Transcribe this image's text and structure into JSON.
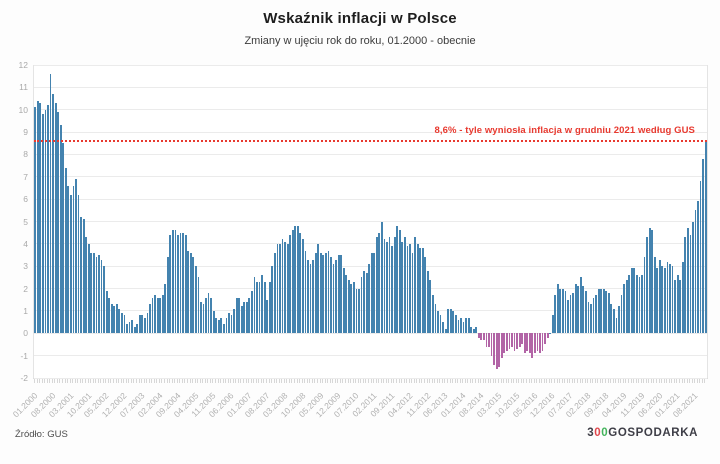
{
  "title": "Wskaźnik inflacji w Polsce",
  "subtitle": "Zmiany w ujęciu rok do roku, 01.2000 - obecnie",
  "annotation": {
    "text": "8,6% - tyle wyniosła inflacja w grudniu 2021 według GUS",
    "value": 8.6,
    "color": "#e8392f"
  },
  "source": "Źródło: GUS",
  "logo": {
    "part1": "3",
    "zero1": "0",
    "zero2": "0",
    "part2": "GOSPODARKA",
    "color_dark": "#3e3e47",
    "color_red": "#e0484d",
    "color_green": "#43b45c"
  },
  "chart_data": {
    "type": "bar",
    "title": "Wskaźnik inflacji w Polsce",
    "subtitle": "Zmiany w ujęciu rok do roku, 01.2000 - obecnie",
    "unit": "%",
    "start_month": "01.2000",
    "end_month": "12.2021",
    "ylim": [
      -2,
      12
    ],
    "y_ticks": [
      12,
      11,
      10,
      9,
      8,
      7,
      6,
      5,
      4,
      3,
      2,
      1,
      0,
      -1,
      -2
    ],
    "x_tick_interval_months": 7,
    "x_tick_labels": [
      "01.2000",
      "08.2000",
      "03.2001",
      "10.2001",
      "05.2002",
      "12.2002",
      "07.2003",
      "02.2004",
      "09.2004",
      "04.2005",
      "11.2005",
      "06.2006",
      "01.2007",
      "08.2007",
      "03.2008",
      "10.2008",
      "05.2009",
      "12.2009",
      "07.2010",
      "02.2011",
      "09.2011",
      "04.2012",
      "11.2012",
      "06.2013",
      "01.2014",
      "08.2014",
      "03.2015",
      "10.2015",
      "05.2016",
      "12.2016",
      "07.2017",
      "02.2018",
      "09.2018",
      "04.2019",
      "11.2019",
      "06.2020",
      "01.2021",
      "08.2021"
    ],
    "grid": true,
    "legend": false,
    "colors": {
      "positive_bar": "#4483af",
      "negative_bar": "#b264a6",
      "reference_line": "#e8392f",
      "gridline": "#ebebeb",
      "axis_text": "#aaaaaa"
    },
    "reference_line": {
      "value": 8.6,
      "style": "dotted"
    },
    "values": [
      10.1,
      10.4,
      10.3,
      9.8,
      10.0,
      10.2,
      11.6,
      10.7,
      10.3,
      9.9,
      9.3,
      8.5,
      7.4,
      6.6,
      6.2,
      6.6,
      6.9,
      6.2,
      5.2,
      5.1,
      4.3,
      4.0,
      3.6,
      3.6,
      3.4,
      3.5,
      3.3,
      3.0,
      1.9,
      1.6,
      1.3,
      1.2,
      1.3,
      1.1,
      0.9,
      0.8,
      0.4,
      0.5,
      0.6,
      0.3,
      0.4,
      0.8,
      0.8,
      0.7,
      0.9,
      1.3,
      1.6,
      1.7,
      1.6,
      1.6,
      1.7,
      2.2,
      3.4,
      4.4,
      4.6,
      4.6,
      4.4,
      4.5,
      4.5,
      4.4,
      3.7,
      3.6,
      3.4,
      3.0,
      2.5,
      1.4,
      1.3,
      1.6,
      1.8,
      1.6,
      1.0,
      0.7,
      0.6,
      0.7,
      0.4,
      0.7,
      0.9,
      0.8,
      1.1,
      1.6,
      1.6,
      1.2,
      1.4,
      1.4,
      1.6,
      1.9,
      2.5,
      2.3,
      2.3,
      2.6,
      2.3,
      1.5,
      2.3,
      3.0,
      3.6,
      4.0,
      4.0,
      4.2,
      4.1,
      4.0,
      4.4,
      4.6,
      4.8,
      4.8,
      4.5,
      4.2,
      3.7,
      3.3,
      3.1,
      3.3,
      3.6,
      4.0,
      3.6,
      3.5,
      3.6,
      3.7,
      3.4,
      3.1,
      3.3,
      3.5,
      3.5,
      2.9,
      2.6,
      2.4,
      2.2,
      2.3,
      2.0,
      2.0,
      2.5,
      2.8,
      2.7,
      3.1,
      3.6,
      3.6,
      4.3,
      4.5,
      5.0,
      4.2,
      4.1,
      4.3,
      3.9,
      4.3,
      4.8,
      4.6,
      4.1,
      4.3,
      3.9,
      4.0,
      3.6,
      4.3,
      4.0,
      3.8,
      3.8,
      3.4,
      2.8,
      2.4,
      1.7,
      1.3,
      1.0,
      0.8,
      0.5,
      0.2,
      1.1,
      1.1,
      1.0,
      0.8,
      0.6,
      0.7,
      0.5,
      0.7,
      0.7,
      0.3,
      0.2,
      0.3,
      -0.2,
      -0.3,
      -0.3,
      -0.6,
      -0.6,
      -1.0,
      -1.4,
      -1.6,
      -1.5,
      -1.1,
      -0.9,
      -0.8,
      -0.7,
      -0.6,
      -0.8,
      -0.7,
      -0.6,
      -0.5,
      -0.9,
      -0.8,
      -0.9,
      -1.1,
      -0.9,
      -0.8,
      -0.9,
      -0.8,
      -0.5,
      -0.2,
      0.0,
      0.8,
      1.7,
      2.2,
      2.0,
      2.0,
      1.9,
      1.5,
      1.7,
      1.8,
      2.2,
      2.1,
      2.5,
      2.1,
      1.9,
      1.4,
      1.3,
      1.6,
      1.7,
      2.0,
      2.0,
      2.0,
      1.9,
      1.8,
      1.3,
      1.1,
      0.7,
      1.2,
      1.7,
      2.2,
      2.4,
      2.6,
      2.9,
      2.9,
      2.6,
      2.5,
      2.6,
      3.4,
      4.3,
      4.7,
      4.6,
      3.4,
      2.9,
      3.3,
      3.0,
      2.9,
      3.2,
      3.1,
      3.0,
      2.4,
      2.6,
      2.4,
      3.2,
      4.3,
      4.7,
      4.4,
      5.0,
      5.5,
      5.9,
      6.8,
      7.8,
      8.6
    ]
  }
}
